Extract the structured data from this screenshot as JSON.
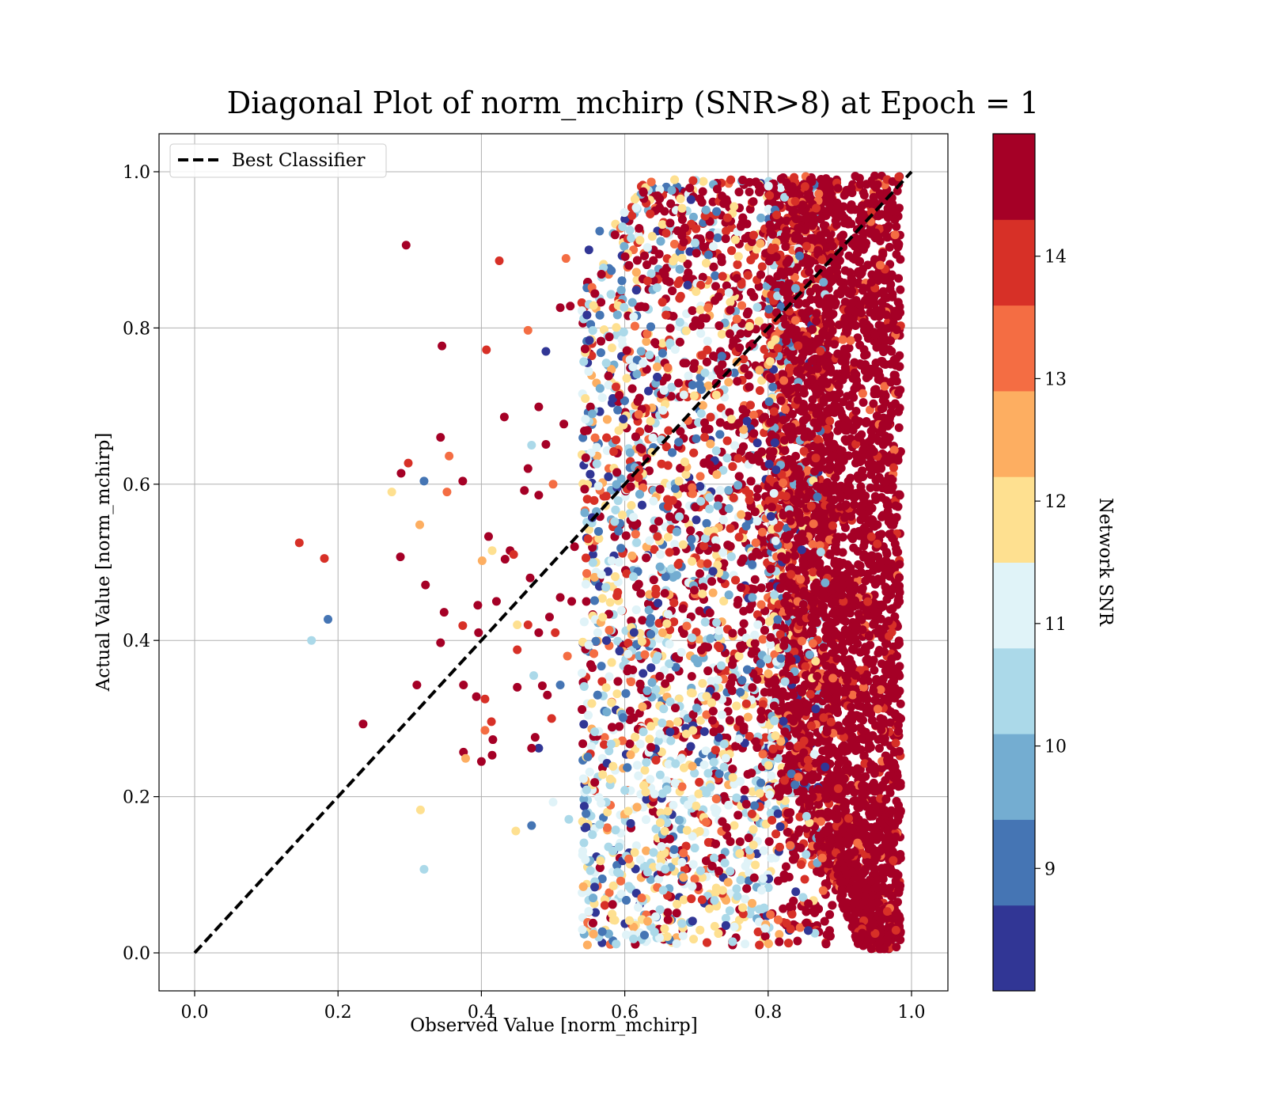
{
  "chart_data": {
    "type": "scatter",
    "title": "Diagonal Plot of norm_mchirp (SNR>8) at Epoch = 1",
    "xlabel": "Observed Value [norm_mchirp]",
    "ylabel": "Actual Value [norm_mchirp]",
    "xlim": [
      -0.05,
      1.05
    ],
    "ylim": [
      -0.05,
      1.05
    ],
    "x_ticks": [
      "0.0",
      "0.2",
      "0.4",
      "0.6",
      "0.8",
      "1.0"
    ],
    "y_ticks": [
      "0.0",
      "0.2",
      "0.4",
      "0.6",
      "0.8",
      "1.0"
    ],
    "grid": true,
    "legend": {
      "placement": "upper-left",
      "entries": [
        "Best Classifier"
      ]
    },
    "reference_line": {
      "name": "Best Classifier",
      "style": "dashed",
      "color": "#000000",
      "x": [
        0.0,
        1.0
      ],
      "y": [
        0.0,
        1.0
      ]
    },
    "colorbar": {
      "label": "Network SNR",
      "range": [
        8,
        15
      ],
      "ticks": [
        "9",
        "10",
        "11",
        "12",
        "13",
        "14"
      ],
      "tick_values": [
        9,
        10,
        11,
        12,
        13,
        14
      ],
      "colors": [
        "#313695",
        "#4575b4",
        "#74add1",
        "#abd9e9",
        "#e0f3f8",
        "#fee090",
        "#fdae61",
        "#f46d43",
        "#d73027",
        "#a50026"
      ],
      "boundaries": [
        8.0,
        8.7,
        9.4,
        10.1,
        10.8,
        11.5,
        12.2,
        12.9,
        13.6,
        14.3,
        15.0
      ]
    },
    "series": [
      {
        "points": [
          [
            0.295,
            0.906,
            14.8
          ],
          [
            0.425,
            0.886,
            13.9
          ],
          [
            0.518,
            0.889,
            13.2
          ],
          [
            0.465,
            0.797,
            13.4
          ],
          [
            0.345,
            0.777,
            14.8
          ],
          [
            0.407,
            0.772,
            14.0
          ],
          [
            0.432,
            0.686,
            14.8
          ],
          [
            0.343,
            0.66,
            14.8
          ],
          [
            0.298,
            0.627,
            14.1
          ],
          [
            0.288,
            0.614,
            14.8
          ],
          [
            0.355,
            0.636,
            13.3
          ],
          [
            0.374,
            0.604,
            14.8
          ],
          [
            0.32,
            0.604,
            9.0
          ],
          [
            0.275,
            0.59,
            11.8
          ],
          [
            0.352,
            0.59,
            13.1
          ],
          [
            0.314,
            0.548,
            12.6
          ],
          [
            0.146,
            0.525,
            14.2
          ],
          [
            0.181,
            0.505,
            14.2
          ],
          [
            0.287,
            0.507,
            14.8
          ],
          [
            0.322,
            0.471,
            14.8
          ],
          [
            0.186,
            0.427,
            9.1
          ],
          [
            0.163,
            0.4,
            10.6
          ],
          [
            0.348,
            0.436,
            14.8
          ],
          [
            0.374,
            0.419,
            14.1
          ],
          [
            0.343,
            0.397,
            14.8
          ],
          [
            0.396,
            0.41,
            14.8
          ],
          [
            0.41,
            0.533,
            14.8
          ],
          [
            0.401,
            0.502,
            12.4
          ],
          [
            0.415,
            0.515,
            11.8
          ],
          [
            0.44,
            0.515,
            14.8
          ],
          [
            0.468,
            0.48,
            14.8
          ],
          [
            0.421,
            0.45,
            14.8
          ],
          [
            0.395,
            0.445,
            14.8
          ],
          [
            0.375,
            0.343,
            14.8
          ],
          [
            0.31,
            0.343,
            14.8
          ],
          [
            0.393,
            0.328,
            14.8
          ],
          [
            0.405,
            0.325,
            14.1
          ],
          [
            0.414,
            0.296,
            14.0
          ],
          [
            0.405,
            0.285,
            13.1
          ],
          [
            0.416,
            0.273,
            14.8
          ],
          [
            0.375,
            0.257,
            14.8
          ],
          [
            0.378,
            0.249,
            12.7
          ],
          [
            0.4,
            0.245,
            14.8
          ],
          [
            0.415,
            0.253,
            14.8
          ],
          [
            0.235,
            0.293,
            14.8
          ],
          [
            0.315,
            0.183,
            11.7
          ],
          [
            0.32,
            0.107,
            10.5
          ],
          [
            0.448,
            0.156,
            12.0
          ],
          [
            0.47,
            0.163,
            9.1
          ],
          [
            0.5,
            0.193,
            11.2
          ],
          [
            0.522,
            0.171,
            10.7
          ],
          [
            0.548,
            0.11,
            12.0
          ],
          [
            0.48,
            0.699,
            14.8
          ],
          [
            0.49,
            0.77,
            8.6
          ],
          [
            0.51,
            0.826,
            14.8
          ],
          [
            0.524,
            0.828,
            14.8
          ],
          [
            0.56,
            0.825,
            12.4
          ],
          [
            0.55,
            0.9,
            8.6
          ],
          [
            0.565,
            0.924,
            9.0
          ],
          [
            0.587,
            0.933,
            11.6
          ],
          [
            0.63,
            0.978,
            9.2
          ],
          [
            0.68,
            0.975,
            8.6
          ],
          [
            0.745,
            0.985,
            13.4
          ],
          [
            0.79,
            0.985,
            8.6
          ],
          [
            0.515,
            0.677,
            14.8
          ],
          [
            0.49,
            0.651,
            14.8
          ],
          [
            0.46,
            0.592,
            14.8
          ],
          [
            0.48,
            0.586,
            14.8
          ],
          [
            0.465,
            0.62,
            14.8
          ],
          [
            0.47,
            0.65,
            10.6
          ],
          [
            0.5,
            0.6,
            13.3
          ],
          [
            0.445,
            0.51,
            14.1
          ],
          [
            0.433,
            0.504,
            14.8
          ],
          [
            0.51,
            0.455,
            14.8
          ],
          [
            0.495,
            0.43,
            14.8
          ],
          [
            0.503,
            0.41,
            14.1
          ],
          [
            0.48,
            0.41,
            14.8
          ],
          [
            0.45,
            0.388,
            14.1
          ],
          [
            0.45,
            0.42,
            12.0
          ],
          [
            0.465,
            0.42,
            14.1
          ],
          [
            0.473,
            0.355,
            10.4
          ],
          [
            0.492,
            0.33,
            14.8
          ],
          [
            0.498,
            0.3,
            14.0
          ],
          [
            0.51,
            0.343,
            9.2
          ],
          [
            0.485,
            0.342,
            14.8
          ],
          [
            0.45,
            0.34,
            14.8
          ],
          [
            0.475,
            0.276,
            14.8
          ],
          [
            0.48,
            0.262,
            8.6
          ],
          [
            0.47,
            0.262,
            14.8
          ],
          [
            0.52,
            0.38,
            13.2
          ],
          [
            0.526,
            0.45,
            14.8
          ],
          [
            0.53,
            0.52,
            14.8
          ]
        ]
      }
    ]
  }
}
